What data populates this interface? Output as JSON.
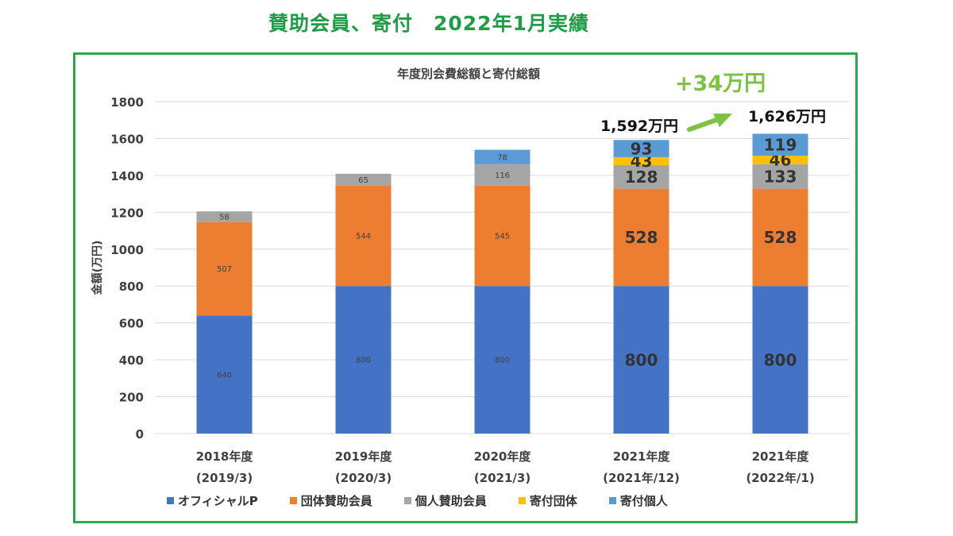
{
  "page_title": "賛助会員、寄付　2022年1月実績",
  "chart_data": {
    "type": "bar",
    "stacked": true,
    "title": "年度別会費総額と寄付総額",
    "ylabel": "金額(万円)",
    "xlabel": "",
    "ylim": [
      0,
      1800
    ],
    "yticks": [
      0,
      200,
      400,
      600,
      800,
      1000,
      1200,
      1400,
      1600,
      1800
    ],
    "grid": true,
    "legend_position": "bottom",
    "categories": [
      {
        "line1": "2018年度",
        "line2": "(2019/3)"
      },
      {
        "line1": "2019年度",
        "line2": "(2020/3)"
      },
      {
        "line1": "2020年度",
        "line2": "(2021/3)"
      },
      {
        "line1": "2021年度",
        "line2": "(2021年/12)"
      },
      {
        "line1": "2021年度",
        "line2": "(2022年/1)"
      }
    ],
    "series": [
      {
        "name": "オフィシャルP",
        "color": "#4472c4",
        "values": [
          640,
          800,
          800,
          800,
          800
        ]
      },
      {
        "name": "団体賛助会員",
        "color": "#ed7d31",
        "values": [
          507,
          544,
          545,
          528,
          528
        ]
      },
      {
        "name": "個人賛助会員",
        "color": "#a5a5a5",
        "values": [
          58,
          65,
          116,
          128,
          133
        ]
      },
      {
        "name": "寄付団体",
        "color": "#ffc000",
        "values": [
          0,
          0,
          0,
          43,
          46
        ]
      },
      {
        "name": "寄付個人",
        "color": "#5b9bd5",
        "values": [
          0,
          0,
          78,
          93,
          119
        ]
      }
    ],
    "annotations": {
      "total_before": "1,592万円",
      "total_after": "1,626万円",
      "increase": "+34万円",
      "arrow_color": "#7dc243"
    }
  }
}
